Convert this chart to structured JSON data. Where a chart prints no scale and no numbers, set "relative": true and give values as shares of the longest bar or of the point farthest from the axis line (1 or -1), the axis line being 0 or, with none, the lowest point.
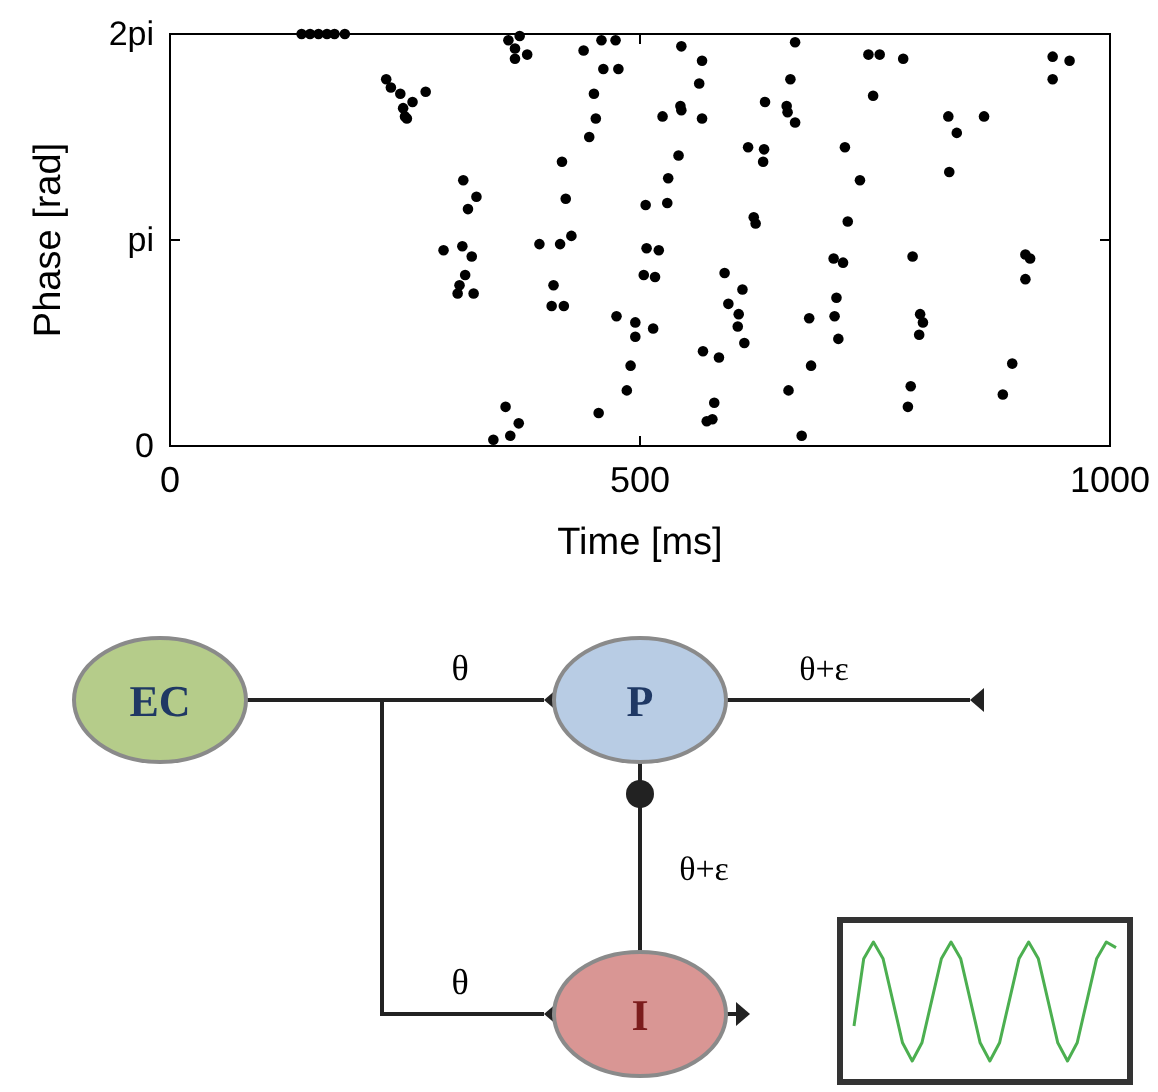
{
  "chart_data": [
    {
      "type": "scatter",
      "xlabel": "Time [ms]",
      "ylabel": "Phase [rad]",
      "xlim": [
        0,
        1000
      ],
      "xticks": [
        0,
        500,
        1000
      ],
      "ylim": [
        0,
        2
      ],
      "yticks": [
        0,
        {
          "value": 1,
          "label": "pi"
        },
        {
          "value": 2,
          "label": "2pi"
        }
      ],
      "marker": "circle",
      "grid": false,
      "series": [
        {
          "color": "#000000",
          "x": [
            140,
            149,
            158,
            167,
            175,
            186,
            230,
            235,
            245,
            258,
            272,
            248,
            250,
            252,
            360,
            372,
            367,
            380,
            367,
            440,
            459,
            474,
            461,
            477,
            451,
            453,
            446,
            417,
            421,
            427,
            415,
            393,
            408,
            406,
            419,
            312,
            326,
            317,
            291,
            311,
            321,
            314,
            308,
            306,
            323,
            357,
            371,
            362,
            344,
            456,
            475,
            495,
            495,
            490,
            486,
            506,
            507,
            520,
            504,
            516,
            514,
            544,
            566,
            563,
            566,
            524,
            543,
            544,
            541,
            530,
            529,
            590,
            609,
            594,
            605,
            604,
            611,
            567,
            584,
            579,
            571,
            577,
            665,
            660,
            633,
            656,
            657,
            665,
            615,
            632,
            631,
            621,
            623,
            680,
            682,
            658,
            672,
            718,
            734,
            721,
            706,
            716,
            709,
            707,
            711,
            743,
            755,
            780,
            748,
            790,
            798,
            801,
            797,
            788,
            785,
            828,
            837,
            866,
            829,
            910,
            915,
            910,
            896,
            886,
            939,
            957,
            939
          ],
          "values": [
            2.0,
            2.0,
            2.0,
            2.0,
            2.0,
            2.0,
            1.78,
            1.74,
            1.71,
            1.67,
            1.72,
            1.64,
            1.6,
            1.59,
            1.97,
            1.99,
            1.93,
            1.9,
            1.88,
            1.92,
            1.97,
            1.97,
            1.83,
            1.83,
            1.71,
            1.59,
            1.5,
            1.38,
            1.2,
            1.02,
            0.98,
            0.98,
            0.78,
            0.68,
            0.68,
            1.29,
            1.21,
            1.15,
            0.95,
            0.97,
            0.92,
            0.83,
            0.78,
            0.74,
            0.74,
            0.19,
            0.11,
            0.05,
            0.03,
            0.16,
            0.63,
            0.6,
            0.53,
            0.39,
            0.27,
            1.17,
            0.96,
            0.95,
            0.83,
            0.82,
            0.57,
            1.94,
            1.87,
            1.76,
            1.59,
            1.6,
            1.65,
            1.63,
            1.41,
            1.3,
            1.18,
            0.84,
            0.76,
            0.69,
            0.64,
            0.58,
            0.5,
            0.46,
            0.43,
            0.21,
            0.12,
            0.13,
            1.96,
            1.78,
            1.67,
            1.65,
            1.62,
            1.57,
            1.45,
            1.44,
            1.38,
            1.11,
            1.08,
            0.62,
            0.39,
            0.27,
            0.05,
            1.45,
            1.29,
            1.09,
            0.91,
            0.89,
            0.72,
            0.63,
            0.52,
            1.9,
            1.9,
            1.88,
            1.7,
            0.92,
            0.64,
            0.6,
            0.54,
            0.29,
            0.19,
            1.6,
            1.52,
            1.6,
            1.33,
            0.93,
            0.91,
            0.81,
            0.4,
            0.25,
            1.89,
            1.87,
            1.78
          ]
        }
      ]
    },
    {
      "type": "other",
      "annotations": [
        "EC",
        "θ",
        "P",
        "θ+ε",
        "θ+ε",
        "θ",
        "I"
      ]
    },
    {
      "type": "line",
      "relative": true,
      "categories": [
        null,
        null,
        null,
        null,
        null,
        null,
        null,
        null,
        null,
        null,
        null,
        null,
        null,
        null,
        null,
        null,
        null,
        null,
        null,
        null,
        null,
        null,
        null,
        null,
        null,
        null,
        null,
        null
      ],
      "series": [
        {
          "color": "#4caf50",
          "values": [
            0.4,
            0.88,
            1,
            0.88,
            0.58,
            0.28,
            0.15,
            0.28,
            0.58,
            0.88,
            1,
            0.88,
            0.58,
            0.28,
            0.15,
            0.28,
            0.58,
            0.88,
            1,
            0.88,
            0.58,
            0.28,
            0.15,
            0.28,
            0.58,
            0.88,
            1,
            0.96
          ]
        }
      ]
    }
  ]
}
